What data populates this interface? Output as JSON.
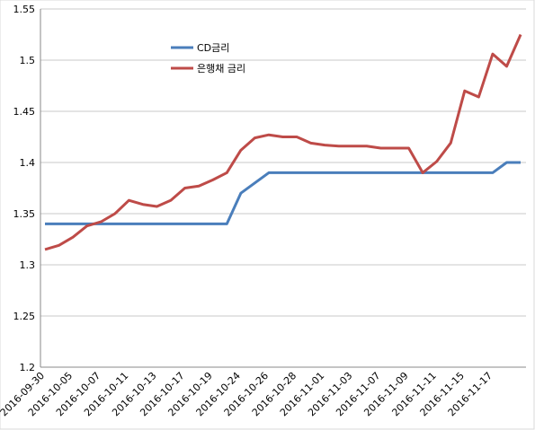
{
  "chart_data": {
    "type": "line",
    "categories": [
      "2016-09-30",
      null,
      "2016-10-05",
      null,
      "2016-10-07",
      null,
      "2016-10-11",
      null,
      "2016-10-13",
      null,
      "2016-10-17",
      null,
      "2016-10-19",
      null,
      "2016-10-24",
      null,
      "2016-10-26",
      null,
      "2016-10-28",
      null,
      "2016-11-01",
      null,
      "2016-11-03",
      null,
      "2016-11-07",
      null,
      "2016-11-09",
      null,
      "2016-11-11",
      null,
      "2016-11-15",
      null,
      "2016-11-17",
      null,
      null
    ],
    "series": [
      {
        "name": "CD금리",
        "color": "#4a7ebb",
        "values": [
          1.34,
          1.34,
          1.34,
          1.34,
          1.34,
          1.34,
          1.34,
          1.34,
          1.34,
          1.34,
          1.34,
          1.34,
          1.34,
          1.34,
          1.37,
          1.38,
          1.39,
          1.39,
          1.39,
          1.39,
          1.39,
          1.39,
          1.39,
          1.39,
          1.39,
          1.39,
          1.39,
          1.39,
          1.39,
          1.39,
          1.39,
          1.39,
          1.39,
          1.4,
          1.4
        ]
      },
      {
        "name": "은행채 금리",
        "color": "#be4b48",
        "values": [
          1.315,
          1.319,
          1.327,
          1.338,
          1.342,
          1.35,
          1.363,
          1.359,
          1.357,
          1.363,
          1.375,
          1.377,
          1.383,
          1.39,
          1.412,
          1.424,
          1.427,
          1.425,
          1.425,
          1.419,
          1.417,
          1.416,
          1.416,
          1.416,
          1.414,
          1.414,
          1.414,
          1.39,
          1.401,
          1.419,
          1.47,
          1.464,
          1.506,
          1.494,
          1.525
        ]
      }
    ],
    "ylim": [
      1.2,
      1.55
    ],
    "yticks": [
      1.2,
      1.25,
      1.3,
      1.35,
      1.4,
      1.45,
      1.5,
      1.55
    ],
    "grid": true
  }
}
